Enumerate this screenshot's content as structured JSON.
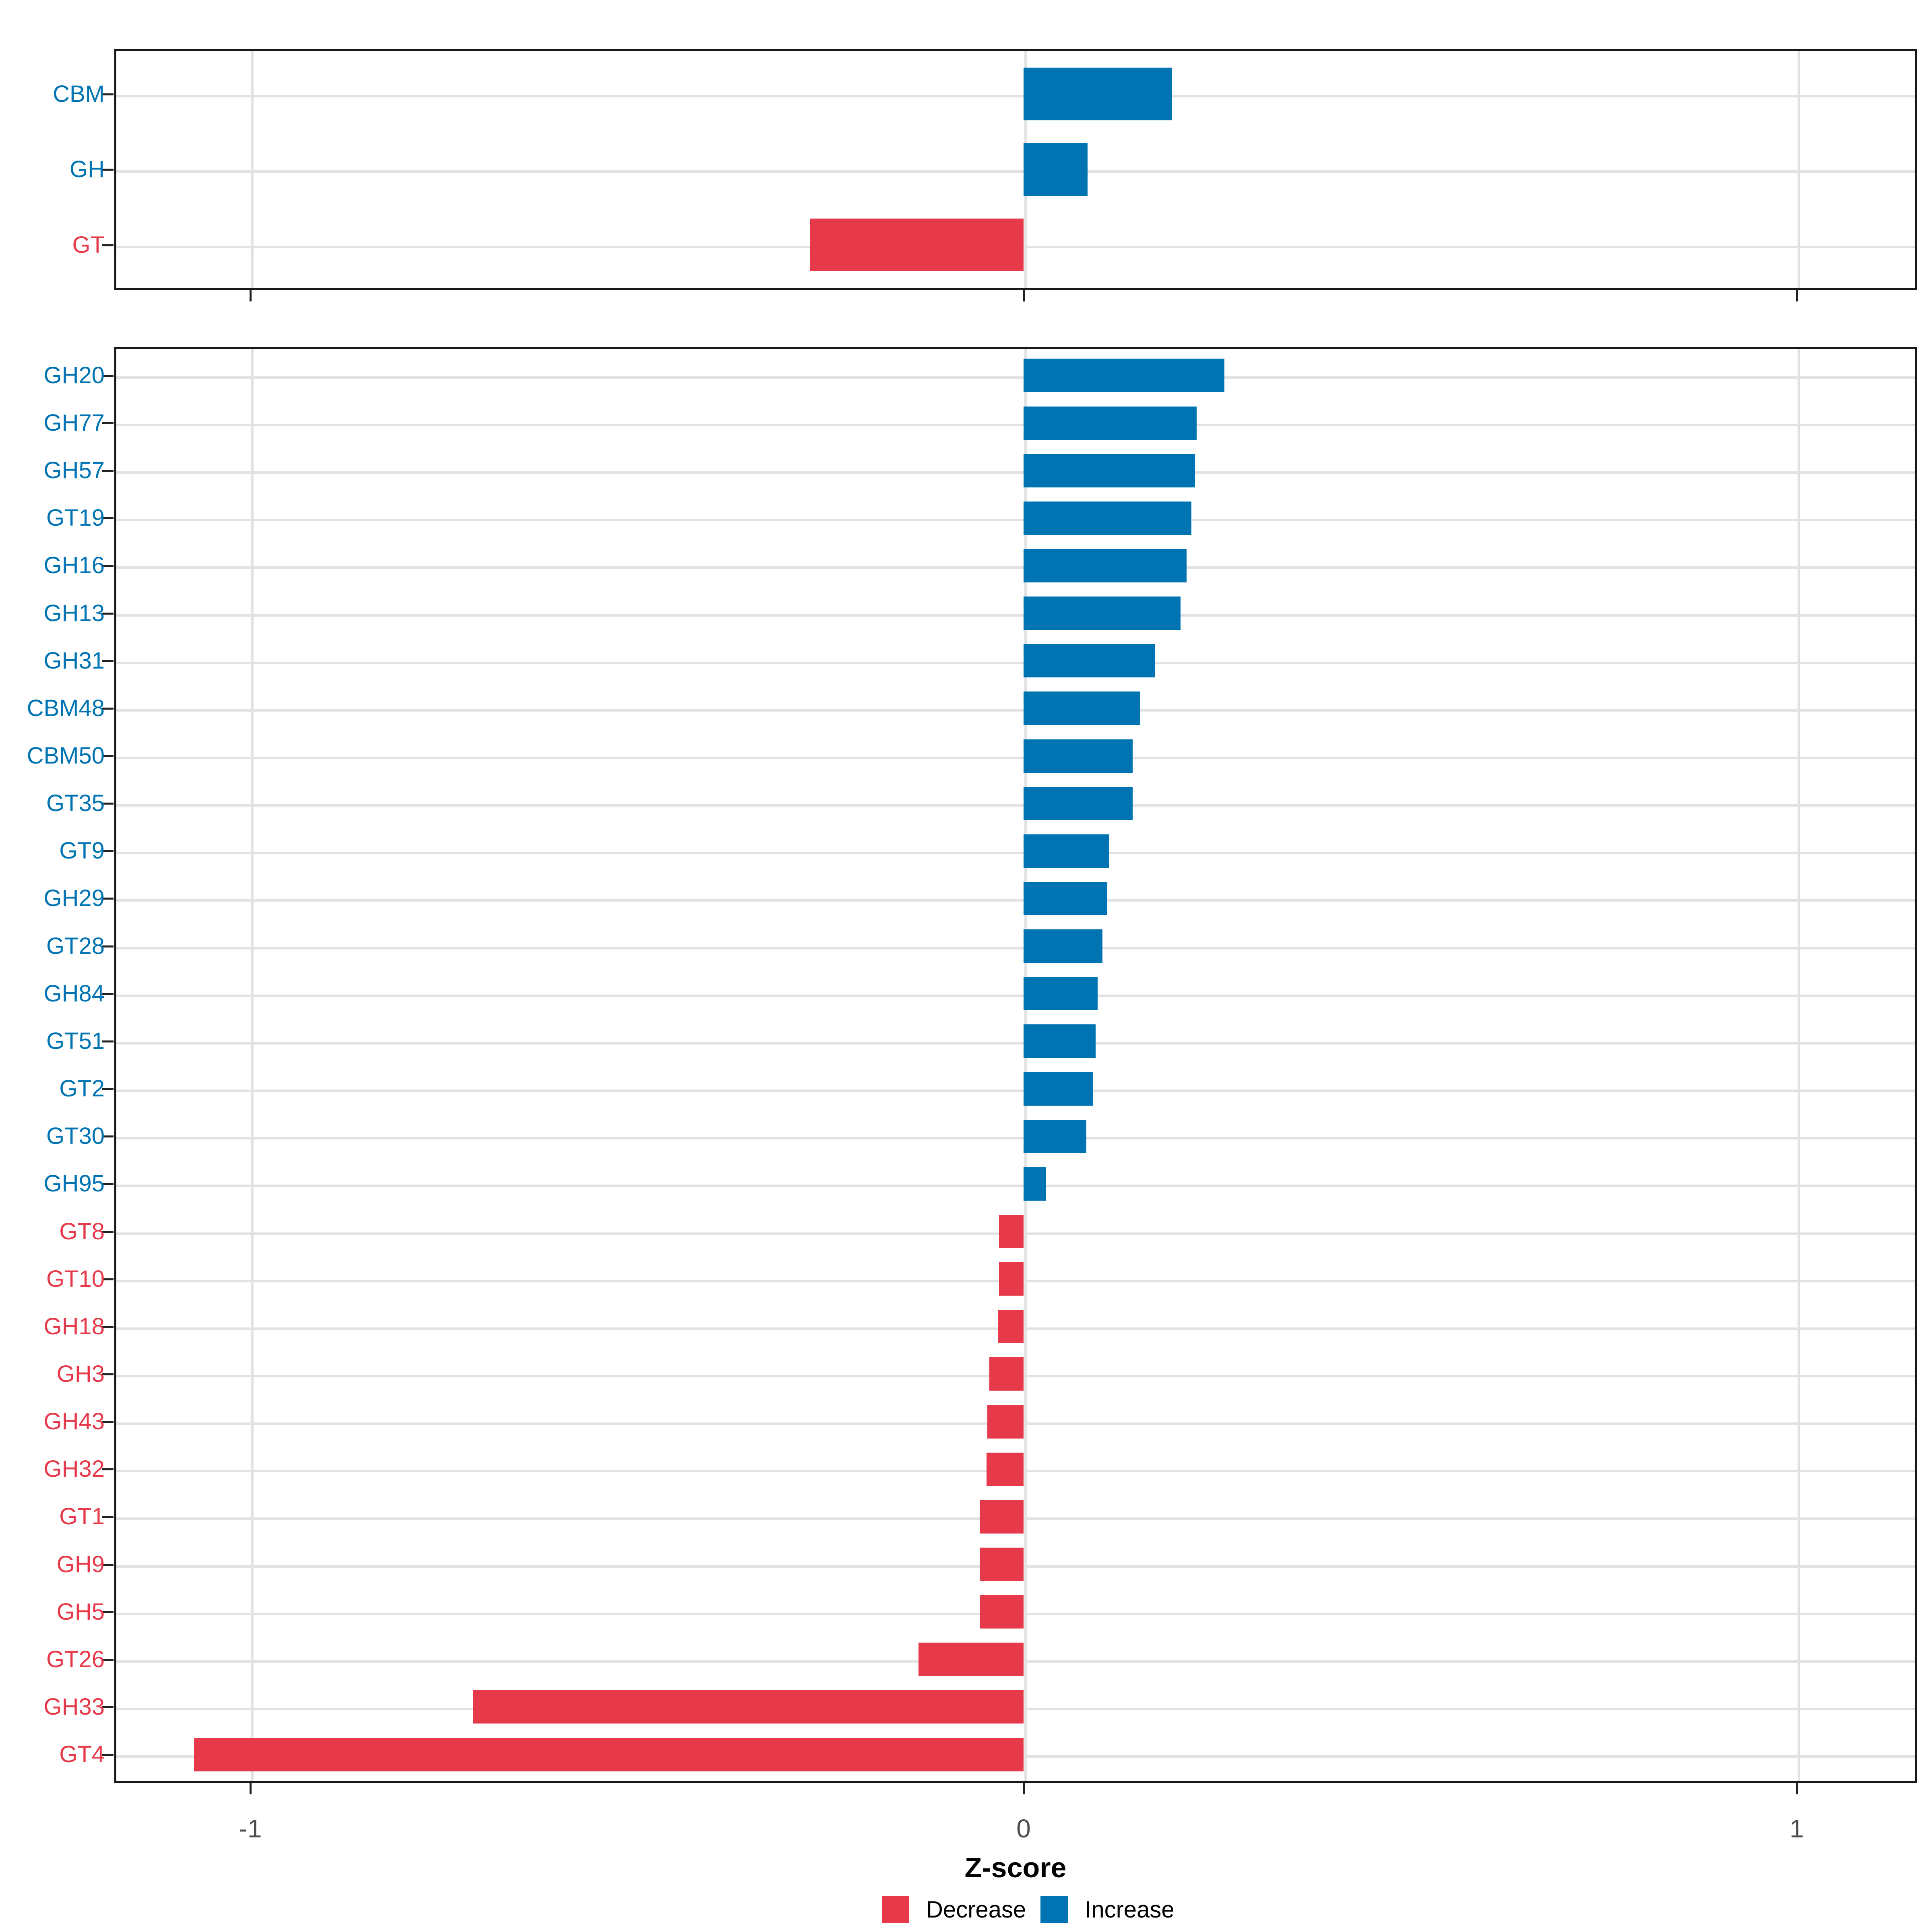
{
  "chart_data": [
    {
      "type": "bar",
      "orientation": "horizontal",
      "panel": "top",
      "categories": [
        "CBM",
        "GH",
        "GT"
      ],
      "values": [
        0.192,
        0.083,
        -0.276
      ],
      "xlim": [
        -1.18,
        1.16
      ],
      "grid": "on",
      "note": "bars colored by sign: positive = increase (blue), negative = decrease (red)"
    },
    {
      "type": "bar",
      "orientation": "horizontal",
      "panel": "bottom",
      "categories": [
        "GH20",
        "GH77",
        "GH57",
        "GT19",
        "GH16",
        "GH13",
        "GH31",
        "CBM48",
        "CBM50",
        "GT35",
        "GT9",
        "GH29",
        "GT28",
        "GH84",
        "GT51",
        "GT2",
        "GT30",
        "GH95",
        "GT8",
        "GT10",
        "GH18",
        "GH3",
        "GH43",
        "GH32",
        "GT1",
        "GH9",
        "GH5",
        "GT26",
        "GH33",
        "GT4"
      ],
      "values": [
        0.26,
        0.224,
        0.222,
        0.217,
        0.211,
        0.203,
        0.17,
        0.151,
        0.141,
        0.141,
        0.111,
        0.108,
        0.102,
        0.096,
        0.093,
        0.09,
        0.081,
        0.029,
        -0.032,
        -0.032,
        -0.033,
        -0.044,
        -0.047,
        -0.048,
        -0.057,
        -0.057,
        -0.057,
        -0.136,
        -0.712,
        -1.073
      ],
      "xlim": [
        -1.18,
        1.16
      ],
      "grid": "on"
    }
  ],
  "axis": {
    "xlabel": "Z-score",
    "tick_labels": [
      "-1",
      "0",
      "1"
    ],
    "tick_values": [
      -1,
      0,
      1
    ]
  },
  "legend": {
    "items": [
      {
        "label": "Decrease",
        "color": "#E63A4B"
      },
      {
        "label": "Increase",
        "color": "#0074B3"
      }
    ]
  },
  "colors": {
    "increase": "#0074B3",
    "decrease": "#E63A4B",
    "gridline": "#E2E2E2",
    "panel_border": "#191919",
    "tick": "#222222",
    "x_tick_text": "#4D4D4D"
  }
}
